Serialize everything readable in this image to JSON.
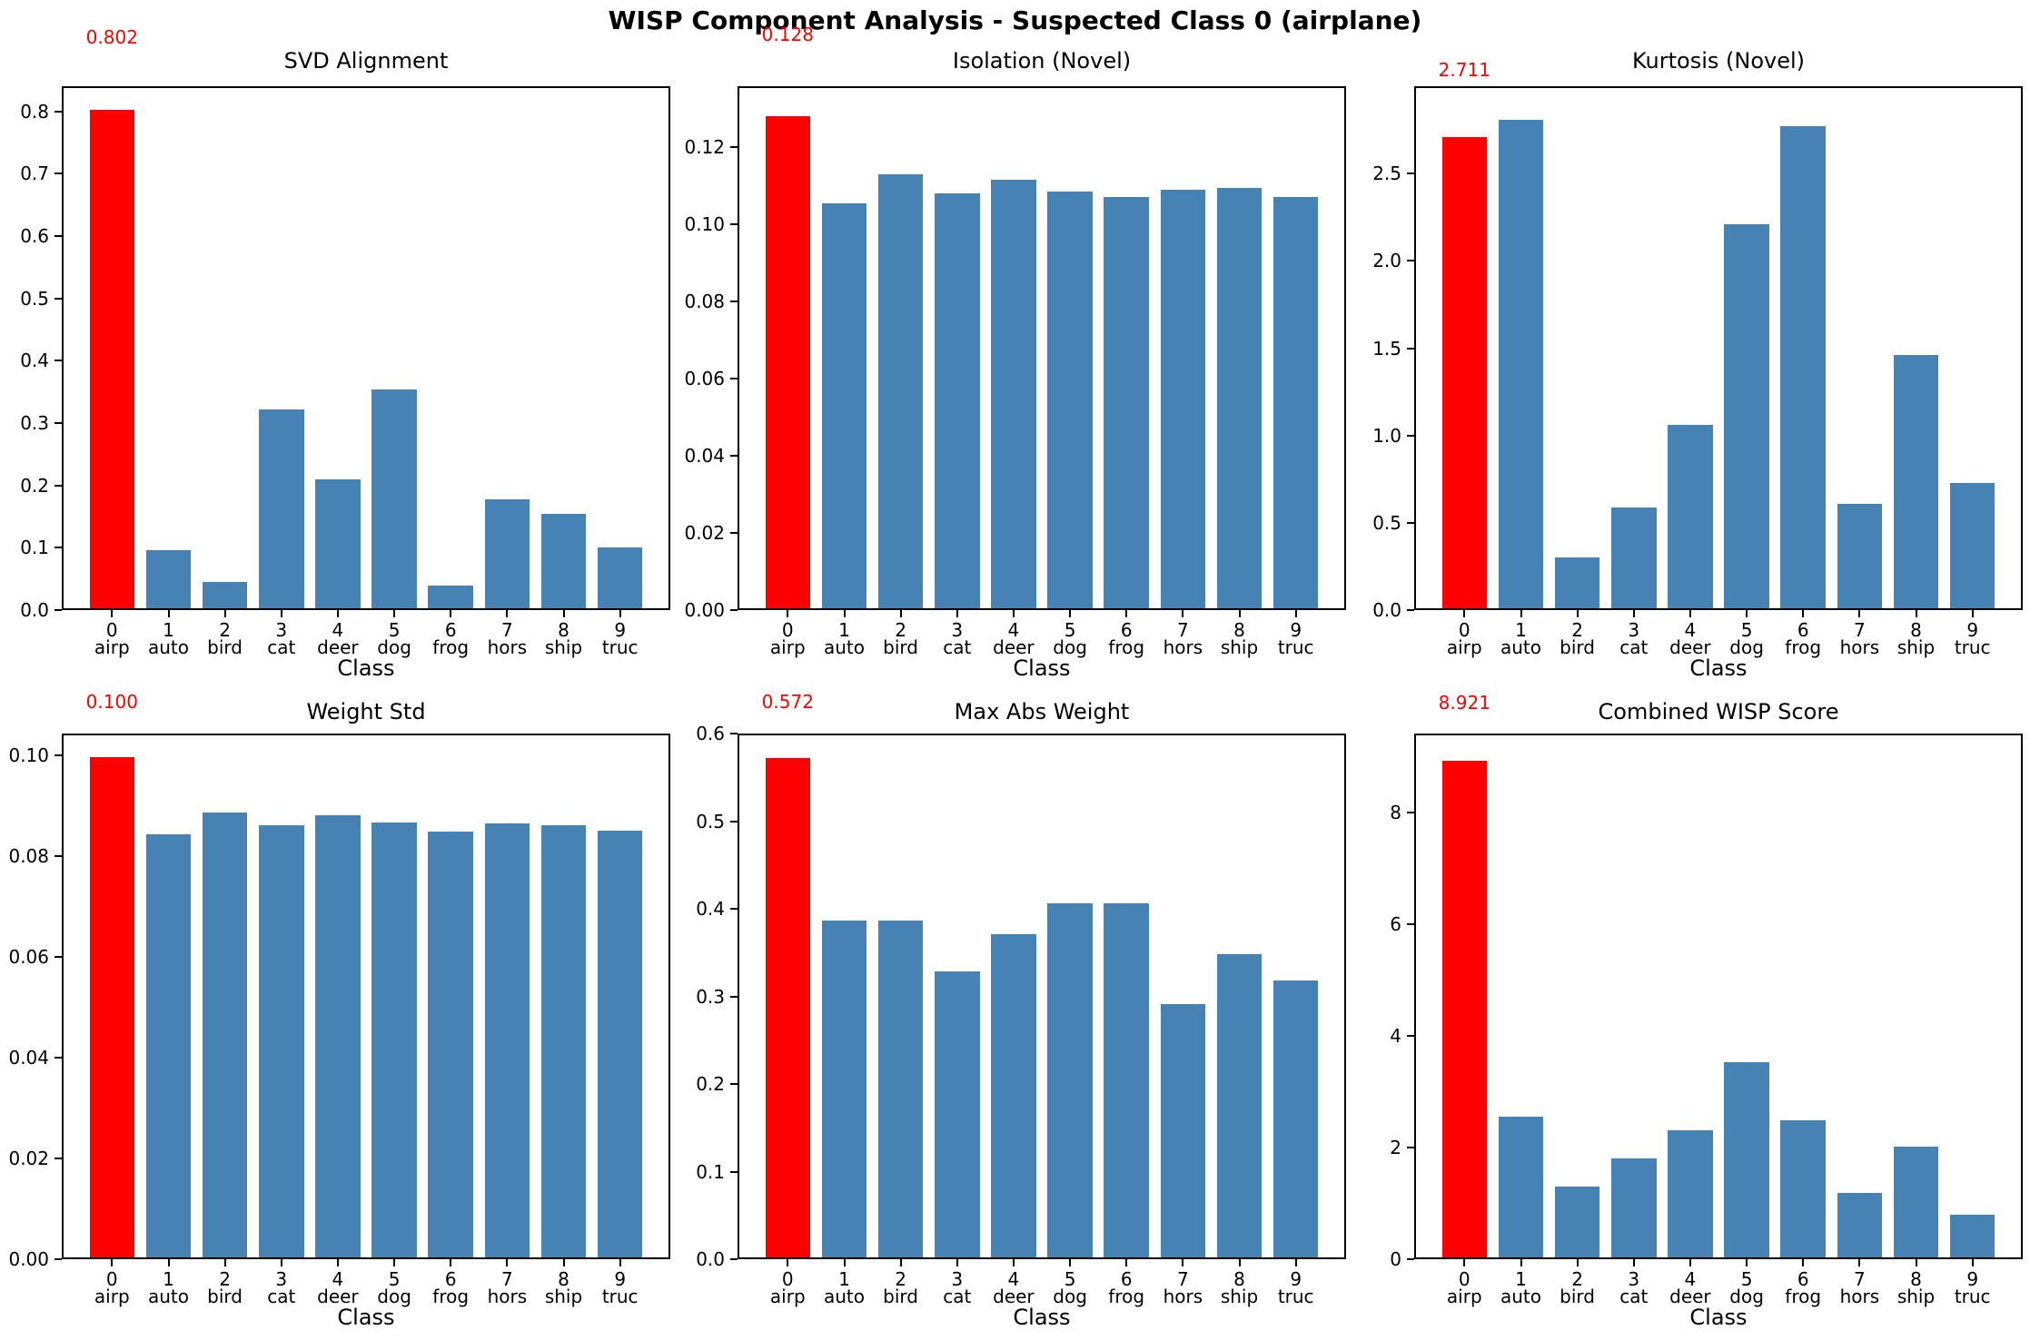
{
  "figure": {
    "suptitle": "WISP Component Analysis - Suspected Class 0 (airplane)",
    "background": "#ffffff"
  },
  "colors": {
    "highlight_bar": "#ff0000",
    "normal_bar": "#4682b4",
    "annotation_text": "#ff0000",
    "axis": "#000000"
  },
  "classes": {
    "ids": [
      "0",
      "1",
      "2",
      "3",
      "4",
      "5",
      "6",
      "7",
      "8",
      "9"
    ],
    "names": [
      "airp",
      "auto",
      "bird",
      "cat",
      "deer",
      "dog",
      "frog",
      "hors",
      "ship",
      "truc"
    ]
  },
  "chart_data": [
    {
      "type": "bar",
      "title": "SVD Alignment",
      "xlabel": "Class",
      "annotation": "0.802",
      "highlight_index": 0,
      "highlight_color": "#ff0000",
      "bar_color": "#4682b4",
      "categories": [
        "0 airp",
        "1 auto",
        "2 bird",
        "3 cat",
        "4 deer",
        "5 dog",
        "6 frog",
        "7 hors",
        "8 ship",
        "9 truc"
      ],
      "values": [
        0.802,
        0.096,
        0.045,
        0.322,
        0.21,
        0.354,
        0.039,
        0.177,
        0.154,
        0.101
      ],
      "ylim": [
        0,
        0.84
      ],
      "ytick_values": [
        0.0,
        0.1,
        0.2,
        0.3,
        0.4,
        0.5,
        0.6,
        0.7,
        0.8
      ],
      "ytick_labels": [
        "0.0",
        "0.1",
        "0.2",
        "0.3",
        "0.4",
        "0.5",
        "0.6",
        "0.7",
        "0.8"
      ],
      "grid": false,
      "legend": "none"
    },
    {
      "type": "bar",
      "title": "Isolation (Novel)",
      "xlabel": "Class",
      "annotation": "0.128",
      "highlight_index": 0,
      "highlight_color": "#ff0000",
      "bar_color": "#4682b4",
      "categories": [
        "0 airp",
        "1 auto",
        "2 bird",
        "3 cat",
        "4 deer",
        "5 dog",
        "6 frog",
        "7 hors",
        "8 ship",
        "9 truc"
      ],
      "values": [
        0.128,
        0.1055,
        0.113,
        0.108,
        0.1115,
        0.1085,
        0.107,
        0.109,
        0.1095,
        0.107
      ],
      "ylim": [
        0,
        0.1358
      ],
      "ytick_values": [
        0.0,
        0.02,
        0.04,
        0.06,
        0.08,
        0.1,
        0.12
      ],
      "ytick_labels": [
        "0.00",
        "0.02",
        "0.04",
        "0.06",
        "0.08",
        "0.10",
        "0.12"
      ],
      "grid": false,
      "legend": "none"
    },
    {
      "type": "bar",
      "title": "Kurtosis (Novel)",
      "xlabel": "Class",
      "annotation": "2.711",
      "highlight_index": 0,
      "highlight_color": "#ff0000",
      "bar_color": "#4682b4",
      "categories": [
        "0 airp",
        "1 auto",
        "2 bird",
        "3 cat",
        "4 deer",
        "5 dog",
        "6 frog",
        "7 hors",
        "8 ship",
        "9 truc"
      ],
      "values": [
        2.711,
        2.81,
        0.3,
        0.59,
        1.06,
        2.21,
        2.77,
        0.61,
        1.46,
        0.73
      ],
      "ylim": [
        0,
        3.0
      ],
      "ytick_values": [
        0.0,
        0.5,
        1.0,
        1.5,
        2.0,
        2.5
      ],
      "ytick_labels": [
        "0.0",
        "0.5",
        "1.0",
        "1.5",
        "2.0",
        "2.5"
      ],
      "grid": false,
      "legend": "none"
    },
    {
      "type": "bar",
      "title": "Weight Std",
      "xlabel": "Class",
      "annotation": "0.100",
      "highlight_index": 0,
      "highlight_color": "#ff0000",
      "bar_color": "#4682b4",
      "categories": [
        "0 airp",
        "1 auto",
        "2 bird",
        "3 cat",
        "4 deer",
        "5 dog",
        "6 frog",
        "7 hors",
        "8 ship",
        "9 truc"
      ],
      "values": [
        0.0997,
        0.0843,
        0.0886,
        0.0862,
        0.0881,
        0.0866,
        0.0848,
        0.0864,
        0.0862,
        0.085
      ],
      "ylim": [
        0,
        0.1043
      ],
      "ytick_values": [
        0.0,
        0.02,
        0.04,
        0.06,
        0.08,
        0.1
      ],
      "ytick_labels": [
        "0.00",
        "0.02",
        "0.04",
        "0.06",
        "0.08",
        "0.10"
      ],
      "grid": false,
      "legend": "none"
    },
    {
      "type": "bar",
      "title": "Max Abs Weight",
      "xlabel": "Class",
      "annotation": "0.572",
      "highlight_index": 0,
      "highlight_color": "#ff0000",
      "bar_color": "#4682b4",
      "categories": [
        "0 airp",
        "1 auto",
        "2 bird",
        "3 cat",
        "4 deer",
        "5 dog",
        "6 frog",
        "7 hors",
        "8 ship",
        "9 truc"
      ],
      "values": [
        0.572,
        0.387,
        0.387,
        0.329,
        0.371,
        0.406,
        0.406,
        0.291,
        0.348,
        0.318
      ],
      "ylim": [
        0,
        0.6
      ],
      "ytick_values": [
        0.0,
        0.1,
        0.2,
        0.3,
        0.4,
        0.5,
        0.6
      ],
      "ytick_labels": [
        "0.0",
        "0.1",
        "0.2",
        "0.3",
        "0.4",
        "0.5",
        "0.6"
      ],
      "grid": false,
      "legend": "none"
    },
    {
      "type": "bar",
      "title": "Combined WISP Score",
      "xlabel": "Class",
      "annotation": "8.921",
      "highlight_index": 0,
      "highlight_color": "#ff0000",
      "bar_color": "#4682b4",
      "categories": [
        "0 airp",
        "1 auto",
        "2 bird",
        "3 cat",
        "4 deer",
        "5 dog",
        "6 frog",
        "7 hors",
        "8 ship",
        "9 truc"
      ],
      "values": [
        8.921,
        2.56,
        1.3,
        1.81,
        2.31,
        3.53,
        2.49,
        1.19,
        2.02,
        0.8
      ],
      "ylim": [
        0,
        9.41
      ],
      "ytick_values": [
        0,
        2,
        4,
        6,
        8
      ],
      "ytick_labels": [
        "0",
        "2",
        "4",
        "6",
        "8"
      ],
      "grid": false,
      "legend": "none"
    }
  ]
}
